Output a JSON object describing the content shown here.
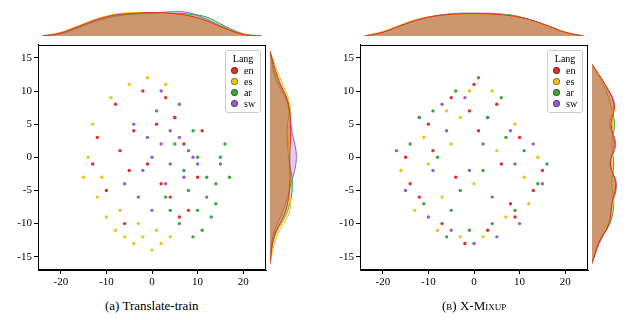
{
  "chart_data": [
    {
      "type": "scatter",
      "title": "(a) Translate-train",
      "legend": "upper right",
      "legend_title": "Lang",
      "grid": false,
      "xlim": [
        -25,
        25
      ],
      "xticks": [
        -20,
        -10,
        0,
        10,
        20
      ],
      "ylim": [
        -17,
        17
      ],
      "yticks": [
        -15,
        -10,
        -5,
        0,
        5,
        10,
        15
      ],
      "series": [
        {
          "name": "en",
          "color": "#e0302a",
          "x": [
            -12,
            -8,
            -5,
            -2,
            1,
            4,
            7,
            10,
            -10,
            -6,
            -1,
            3,
            6,
            11,
            -13,
            -4,
            2,
            8,
            -7,
            5
          ],
          "values": [
            3,
            8,
            -2,
            10,
            5,
            -6,
            2,
            -3,
            -5,
            -10,
            -1,
            9,
            -9,
            4,
            -1,
            4,
            -4,
            -8,
            1,
            6
          ]
        },
        {
          "name": "es",
          "color": "#f2c21b",
          "x": [
            -14,
            -12,
            -10,
            -8,
            -6,
            -4,
            -2,
            0,
            2,
            4,
            -13,
            -9,
            -5,
            -1,
            3,
            -11,
            -7,
            -3,
            1,
            -15
          ],
          "values": [
            0,
            -6,
            -9,
            -11,
            -12,
            -13,
            -12,
            -14,
            -13,
            -12,
            5,
            9,
            11,
            12,
            11,
            -3,
            -8,
            -10,
            -11,
            -3
          ]
        },
        {
          "name": "ar",
          "color": "#3aa83a",
          "x": [
            10,
            12,
            14,
            15,
            16,
            13,
            11,
            9,
            8,
            6,
            14,
            12,
            10,
            7,
            4,
            17,
            15,
            9,
            5,
            3
          ],
          "values": [
            -8,
            -6,
            -4,
            -1,
            2,
            -9,
            -11,
            -12,
            -5,
            -10,
            -7,
            -3,
            0,
            -2,
            -8,
            -3,
            0,
            4,
            2,
            -6
          ]
        },
        {
          "name": "sw",
          "color": "#9a5bd6",
          "x": [
            0,
            2,
            4,
            6,
            8,
            -2,
            -4,
            1,
            3,
            5,
            7,
            9,
            -1,
            -3,
            2,
            6,
            10,
            4,
            0,
            -6
          ],
          "values": [
            0,
            2,
            -1,
            3,
            1,
            -2,
            5,
            7,
            -4,
            6,
            -3,
            0,
            3,
            -6,
            10,
            8,
            -1,
            4,
            -8,
            -4
          ]
        }
      ]
    },
    {
      "type": "area",
      "tick_labels": false,
      "xlim": [
        -25,
        25
      ],
      "ylim": [
        0,
        0.045
      ],
      "x": [
        -24,
        -20,
        -16,
        -12,
        -8,
        -4,
        0,
        4,
        8,
        12,
        16,
        20,
        24
      ],
      "series": [
        {
          "name": "en",
          "color": "#e0302a",
          "values": [
            0,
            0.004,
            0.013,
            0.022,
            0.028,
            0.03,
            0.031,
            0.03,
            0.027,
            0.02,
            0.01,
            0.002,
            0
          ]
        },
        {
          "name": "es",
          "color": "#f2c21b",
          "values": [
            0,
            0.005,
            0.014,
            0.023,
            0.029,
            0.031,
            0.031,
            0.029,
            0.026,
            0.019,
            0.009,
            0.002,
            0
          ]
        },
        {
          "name": "ar",
          "color": "#3aa83a",
          "values": [
            0,
            0.004,
            0.012,
            0.021,
            0.027,
            0.029,
            0.03,
            0.03,
            0.029,
            0.025,
            0.013,
            0.003,
            0
          ]
        },
        {
          "name": "sw",
          "color": "#9a5bd6",
          "values": [
            0,
            0.003,
            0.011,
            0.02,
            0.026,
            0.029,
            0.03,
            0.032,
            0.031,
            0.022,
            0.011,
            0.002,
            0
          ]
        }
      ]
    },
    {
      "type": "area",
      "orientation": "horizontal",
      "tick_labels": false,
      "xlim": [
        -17,
        17
      ],
      "ylim": [
        0,
        0.05
      ],
      "x": [
        -16,
        -12,
        -8,
        -4,
        0,
        4,
        8,
        12,
        16
      ],
      "series": [
        {
          "name": "en",
          "color": "#e0302a",
          "values": [
            0,
            0.006,
            0.024,
            0.03,
            0.03,
            0.031,
            0.028,
            0.012,
            0
          ]
        },
        {
          "name": "es",
          "color": "#f2c21b",
          "values": [
            0,
            0.01,
            0.03,
            0.028,
            0.027,
            0.029,
            0.03,
            0.015,
            0
          ]
        },
        {
          "name": "ar",
          "color": "#3aa83a",
          "values": [
            0,
            0.007,
            0.027,
            0.034,
            0.028,
            0.026,
            0.028,
            0.01,
            0
          ]
        },
        {
          "name": "sw",
          "color": "#9a5bd6",
          "values": [
            0,
            0.004,
            0.02,
            0.032,
            0.04,
            0.033,
            0.027,
            0.008,
            0
          ]
        }
      ]
    },
    {
      "type": "scatter",
      "title": "(b) X-Mixup",
      "legend": "upper right",
      "legend_title": "Lang",
      "grid": false,
      "xlim": [
        -25,
        25
      ],
      "xticks": [
        -20,
        -10,
        0,
        10,
        20
      ],
      "ylim": [
        -17,
        17
      ],
      "yticks": [
        -15,
        -10,
        -5,
        0,
        5,
        10,
        15
      ],
      "series": [
        {
          "name": "en",
          "color": "#e0302a",
          "x": [
            -15,
            -10,
            -5,
            0,
            5,
            10,
            15,
            -12,
            -7,
            -2,
            3,
            8,
            13,
            -9,
            -4,
            1,
            6,
            -14,
            9,
            -1
          ],
          "values": [
            0,
            5,
            9,
            11,
            8,
            3,
            -2,
            -6,
            -10,
            -13,
            -11,
            -7,
            -5,
            1,
            -3,
            4,
            -1,
            -4,
            -9,
            7
          ]
        },
        {
          "name": "es",
          "color": "#f2c21b",
          "x": [
            -16,
            -11,
            -6,
            -1,
            4,
            9,
            14,
            -13,
            -8,
            -3,
            2,
            7,
            12,
            -10,
            -5,
            0,
            5,
            -3,
            11,
            -7
          ],
          "values": [
            -2,
            3,
            7,
            10,
            10,
            5,
            0,
            -8,
            -11,
            -12,
            -12,
            -9,
            -7,
            -1,
            2,
            -4,
            1,
            6,
            -3,
            -6
          ]
        },
        {
          "name": "ar",
          "color": "#3aa83a",
          "x": [
            -14,
            -9,
            -4,
            1,
            6,
            11,
            16,
            -11,
            -6,
            -1,
            4,
            9,
            14,
            -8,
            -3,
            2,
            7,
            -12,
            -5,
            3
          ],
          "values": [
            2,
            7,
            10,
            12,
            9,
            1,
            -1,
            -7,
            -12,
            -11,
            -10,
            -8,
            -4,
            0,
            -5,
            -2,
            3,
            6,
            -8,
            6
          ]
        },
        {
          "name": "sw",
          "color": "#9a5bd6",
          "x": [
            -17,
            -12,
            -7,
            -2,
            3,
            8,
            13,
            -15,
            -10,
            -5,
            0,
            5,
            10,
            15,
            -6,
            -1,
            4,
            9,
            -9,
            2
          ],
          "values": [
            1,
            6,
            8,
            9,
            6,
            4,
            2,
            -5,
            -9,
            -11,
            -13,
            -12,
            -10,
            -4,
            4,
            -2,
            -6,
            -1,
            -2,
            2
          ]
        }
      ]
    },
    {
      "type": "area",
      "tick_labels": false,
      "xlim": [
        -25,
        25
      ],
      "ylim": [
        0,
        0.045
      ],
      "x": [
        -24,
        -20,
        -16,
        -12,
        -8,
        -4,
        0,
        4,
        8,
        12,
        16,
        20,
        24
      ],
      "series": [
        {
          "name": "en",
          "color": "#e0302a",
          "values": [
            0,
            0.005,
            0.014,
            0.022,
            0.027,
            0.029,
            0.03,
            0.029,
            0.027,
            0.022,
            0.014,
            0.005,
            0
          ]
        },
        {
          "name": "es",
          "color": "#f2c21b",
          "values": [
            0,
            0.006,
            0.015,
            0.023,
            0.027,
            0.029,
            0.029,
            0.029,
            0.027,
            0.021,
            0.013,
            0.004,
            0
          ]
        },
        {
          "name": "ar",
          "color": "#3aa83a",
          "values": [
            0,
            0.005,
            0.014,
            0.022,
            0.027,
            0.029,
            0.03,
            0.029,
            0.028,
            0.022,
            0.014,
            0.005,
            0
          ]
        },
        {
          "name": "sw",
          "color": "#9a5bd6",
          "values": [
            0,
            0.005,
            0.014,
            0.022,
            0.027,
            0.03,
            0.03,
            0.03,
            0.027,
            0.022,
            0.013,
            0.004,
            0
          ]
        }
      ]
    },
    {
      "type": "area",
      "orientation": "horizontal",
      "tick_labels": false,
      "xlim": [
        -17,
        17
      ],
      "ylim": [
        0,
        0.05
      ],
      "x": [
        -16,
        -13,
        -10,
        -7,
        -4,
        -1,
        2,
        5,
        8,
        11,
        14
      ],
      "series": [
        {
          "name": "en",
          "color": "#e0302a",
          "values": [
            0,
            0.01,
            0.026,
            0.03,
            0.036,
            0.028,
            0.034,
            0.029,
            0.034,
            0.02,
            0
          ]
        },
        {
          "name": "es",
          "color": "#f2c21b",
          "values": [
            0,
            0.008,
            0.024,
            0.032,
            0.034,
            0.03,
            0.032,
            0.031,
            0.03,
            0.018,
            0
          ]
        },
        {
          "name": "ar",
          "color": "#3aa83a",
          "values": [
            0,
            0.009,
            0.027,
            0.033,
            0.03,
            0.033,
            0.03,
            0.034,
            0.028,
            0.017,
            0
          ]
        },
        {
          "name": "sw",
          "color": "#9a5bd6",
          "values": [
            0,
            0.011,
            0.025,
            0.031,
            0.037,
            0.027,
            0.036,
            0.027,
            0.033,
            0.019,
            0
          ]
        }
      ]
    }
  ]
}
